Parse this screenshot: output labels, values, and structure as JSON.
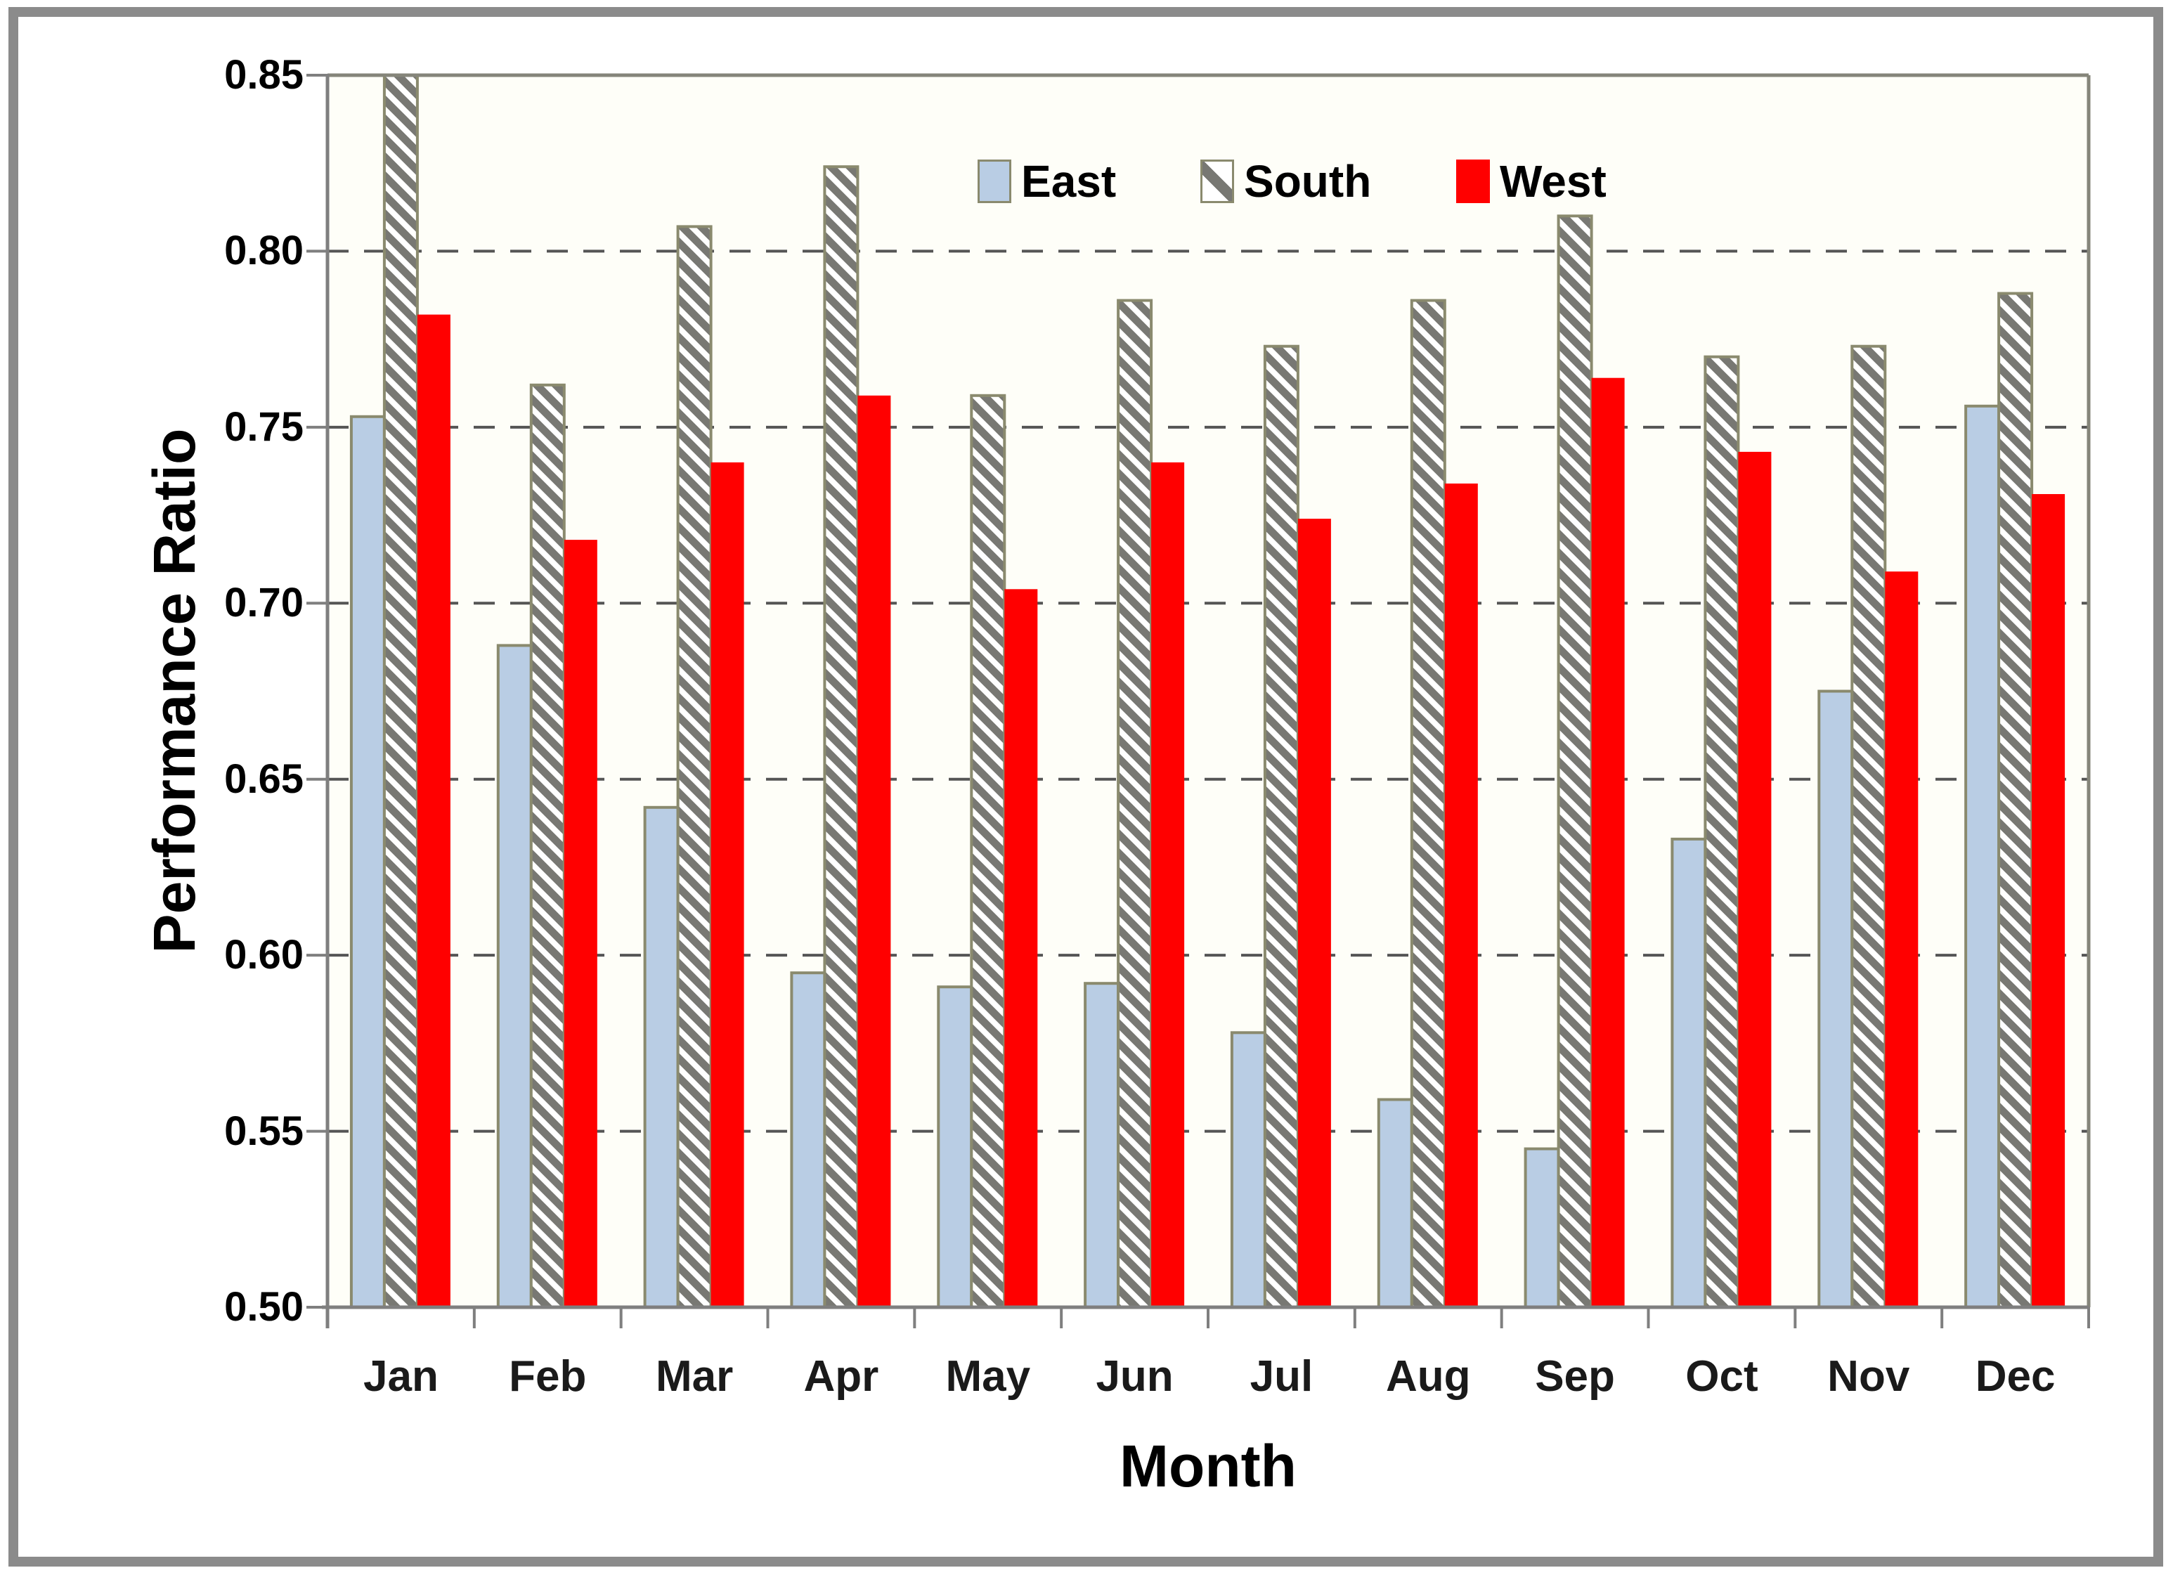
{
  "figure": {
    "outer_border_color": "#8b8b8b",
    "background": "#ffffff",
    "plot_background": "#fefef8",
    "axis_color": "#7f7f7f",
    "plot_border_color": "#85857a",
    "gridline_color": "#555555",
    "bar_border_color": "#8a8a6e",
    "hatch_color": "#787873"
  },
  "chart_data": {
    "type": "bar",
    "title": "",
    "xlabel": "Month",
    "ylabel": "Performance Ratio",
    "ylim": [
      0.5,
      0.85
    ],
    "ytick_step": 0.05,
    "ytick_labels": [
      "0.85",
      "0.80",
      "0.75",
      "0.70",
      "0.65",
      "0.60",
      "0.55",
      "0.50"
    ],
    "grid": "horizontal-dashed",
    "legend_position": "top-center-inside",
    "categories": [
      "Jan",
      "Feb",
      "Mar",
      "Apr",
      "May",
      "Jun",
      "Jul",
      "Aug",
      "Sep",
      "Oct",
      "Nov",
      "Dec"
    ],
    "series": [
      {
        "name": "East",
        "color": "#b9cde4",
        "pattern": "solid",
        "values": [
          0.753,
          0.688,
          0.642,
          0.595,
          0.591,
          0.592,
          0.578,
          0.559,
          0.545,
          0.633,
          0.675,
          0.756
        ]
      },
      {
        "name": "South",
        "color": "#ffffff",
        "pattern": "diagonal-hatch",
        "values": [
          0.85,
          0.762,
          0.807,
          0.824,
          0.759,
          0.786,
          0.773,
          0.786,
          0.81,
          0.77,
          0.773,
          0.788
        ]
      },
      {
        "name": "West",
        "color": "#ff0000",
        "pattern": "solid",
        "values": [
          0.782,
          0.718,
          0.74,
          0.759,
          0.704,
          0.74,
          0.724,
          0.734,
          0.764,
          0.743,
          0.709,
          0.731
        ]
      }
    ]
  }
}
